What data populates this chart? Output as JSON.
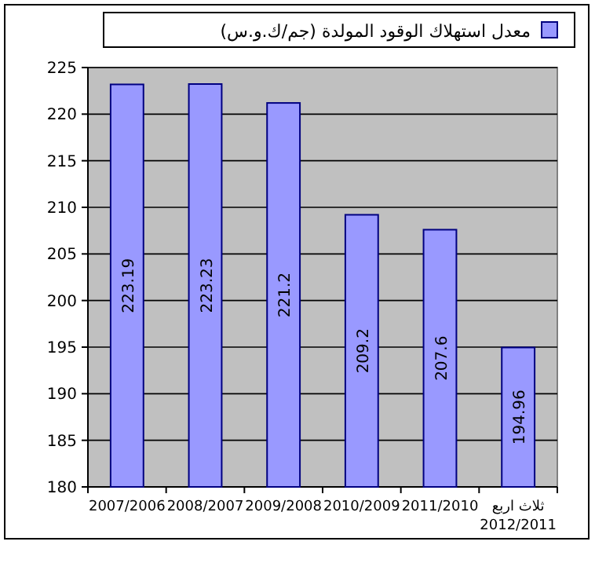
{
  "chart_data": {
    "type": "bar",
    "categories": [
      "2007/2006",
      "2008/2007",
      "2009/2008",
      "2010/2009",
      "2011/2010",
      "ثلاث اربع 2012/2011"
    ],
    "series": [
      {
        "name": "معدل استهلاك الوقود المولدة (جم/ك.و.س)",
        "color": "#9999ff",
        "values": [
          223.19,
          223.23,
          221.2,
          209.2,
          207.6,
          194.96
        ]
      }
    ],
    "ylim": [
      180,
      225
    ],
    "yticks": [
      180,
      185,
      190,
      195,
      200,
      205,
      210,
      215,
      220,
      225
    ],
    "grid": "y",
    "legend": "top",
    "data_labels": true
  }
}
